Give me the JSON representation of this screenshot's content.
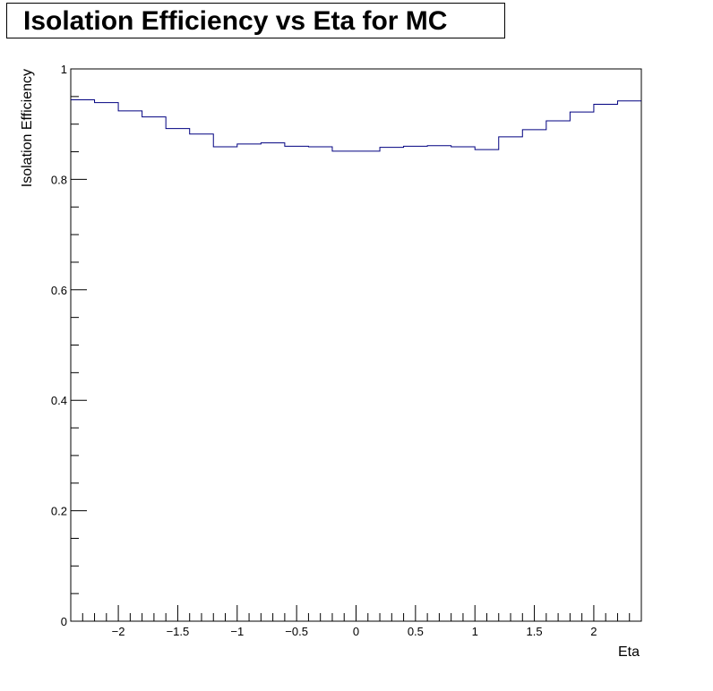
{
  "chart_data": {
    "type": "line",
    "style": "step-histogram",
    "title": "Isolation Efficiency vs Eta for MC",
    "xlabel": "Eta",
    "ylabel": "Isolation Efficiency",
    "xlim": [
      -2.4,
      2.4
    ],
    "ylim": [
      0,
      1
    ],
    "x_ticks": [
      {
        "value": -2,
        "label": "−2"
      },
      {
        "value": -1.5,
        "label": "−1.5"
      },
      {
        "value": -1,
        "label": "−1"
      },
      {
        "value": -0.5,
        "label": "−0.5"
      },
      {
        "value": 0,
        "label": "0"
      },
      {
        "value": 0.5,
        "label": "0.5"
      },
      {
        "value": 1,
        "label": "1"
      },
      {
        "value": 1.5,
        "label": "1.5"
      },
      {
        "value": 2,
        "label": "2"
      }
    ],
    "y_ticks": [
      {
        "value": 0,
        "label": "0"
      },
      {
        "value": 0.2,
        "label": "0.2"
      },
      {
        "value": 0.4,
        "label": "0.4"
      },
      {
        "value": 0.6,
        "label": "0.6"
      },
      {
        "value": 0.8,
        "label": "0.8"
      },
      {
        "value": 1,
        "label": "1"
      }
    ],
    "grid": false,
    "legend": "none",
    "series": [
      {
        "color": "#000080",
        "bin_edges": [
          -2.4,
          -2.2,
          -2.0,
          -1.8,
          -1.6,
          -1.4,
          -1.2,
          -1.0,
          -0.8,
          -0.6,
          -0.4,
          -0.2,
          0.0,
          0.2,
          0.4,
          0.6,
          0.8,
          1.0,
          1.2,
          1.4,
          1.6,
          1.8,
          2.0,
          2.2,
          2.4
        ],
        "values": [
          0.944,
          0.939,
          0.924,
          0.913,
          0.892,
          0.882,
          0.859,
          0.864,
          0.866,
          0.86,
          0.859,
          0.851,
          0.851,
          0.858,
          0.86,
          0.861,
          0.859,
          0.854,
          0.877,
          0.89,
          0.906,
          0.922,
          0.936,
          0.942
        ]
      }
    ]
  }
}
